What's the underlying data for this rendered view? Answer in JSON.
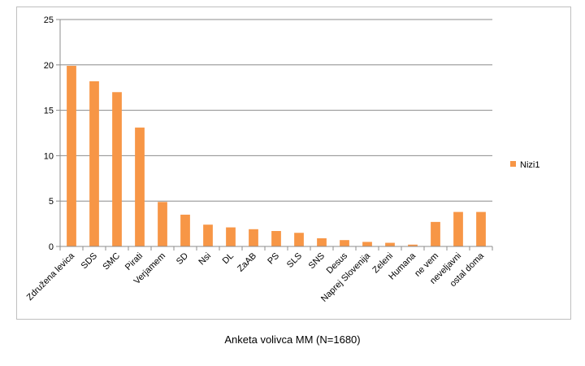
{
  "caption": "Anketa volivca MM (N=1680)",
  "chart_data": {
    "type": "bar",
    "title": "",
    "xlabel": "",
    "ylabel": "",
    "ylim": [
      0,
      25
    ],
    "yticks": [
      0,
      5,
      10,
      15,
      20,
      25
    ],
    "grid": true,
    "legend_position": "right",
    "categories": [
      "Združena levica",
      "SDS",
      "SMC",
      "Pirati",
      "Verjamem",
      "SD",
      "Nsi",
      "DL",
      "ZaAB",
      "PS",
      "SLS",
      "SNS",
      "Desus",
      "Naprej Slovenija",
      "Zeleni",
      "Humana",
      "ne vem",
      "neveljavni",
      "ostal doma"
    ],
    "series": [
      {
        "name": "Nizi1",
        "color": "#f79646",
        "values": [
          19.9,
          18.2,
          17.0,
          13.1,
          4.9,
          3.5,
          2.4,
          2.1,
          1.9,
          1.7,
          1.5,
          0.9,
          0.7,
          0.5,
          0.4,
          0.2,
          2.7,
          3.8,
          3.8
        ]
      }
    ]
  }
}
